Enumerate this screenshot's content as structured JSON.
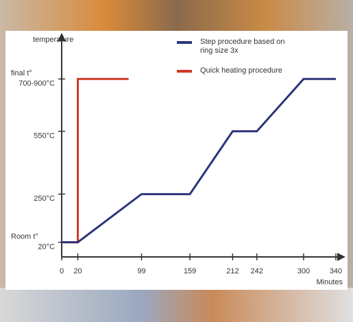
{
  "chart_data": {
    "type": "line",
    "y_label": "temperature",
    "x_label": "Minutes",
    "xlim": [
      0,
      340
    ],
    "xticks": [
      0,
      20,
      99,
      159,
      212,
      242,
      300,
      340
    ],
    "ylim": [
      -50,
      850
    ],
    "yticks": [
      {
        "value": 20,
        "label": "20°C"
      },
      {
        "value": 250,
        "label": "250°C"
      },
      {
        "value": 550,
        "label": "550°C"
      },
      {
        "value": 800,
        "label": "700-900°C"
      }
    ],
    "y_annotations": [
      {
        "value": 20,
        "label": "Room t°"
      },
      {
        "value": 800,
        "label": "final t°"
      }
    ],
    "series": [
      {
        "name": "Step procedure based on ring size 3x",
        "color": "#2b3479",
        "x": [
          0,
          20,
          99,
          159,
          212,
          242,
          300,
          340
        ],
        "values": [
          20,
          20,
          250,
          250,
          550,
          550,
          800,
          800
        ]
      },
      {
        "name": "Quick heating procedure",
        "color": "#cf3a26",
        "x": [
          0,
          20,
          20,
          83
        ],
        "values": [
          20,
          20,
          800,
          800
        ]
      }
    ]
  }
}
